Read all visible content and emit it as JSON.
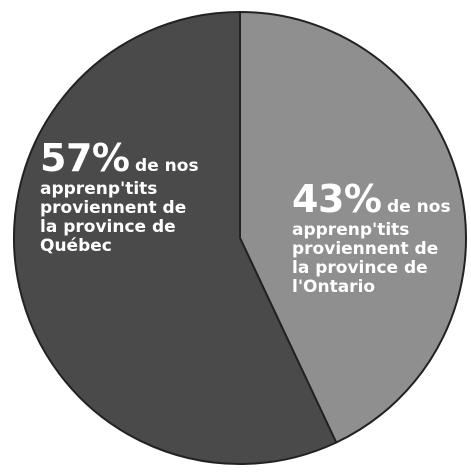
{
  "chart_data": {
    "type": "pie",
    "slices": [
      {
        "value": 43,
        "percent_label": "43%",
        "lead_text": "de nos",
        "rest_text": [
          "apprenp'tits",
          "proviennent de",
          "la province de",
          "l'Ontario"
        ],
        "color": "#8f8f8f"
      },
      {
        "value": 57,
        "percent_label": "57%",
        "lead_text": "de nos",
        "rest_text": [
          "apprenp'tits",
          "proviennent de",
          "la province de",
          "Québec"
        ],
        "color": "#4a4a4a"
      }
    ],
    "start_angle_deg": 0,
    "direction": "clockwise",
    "stroke_color": "#222222"
  }
}
